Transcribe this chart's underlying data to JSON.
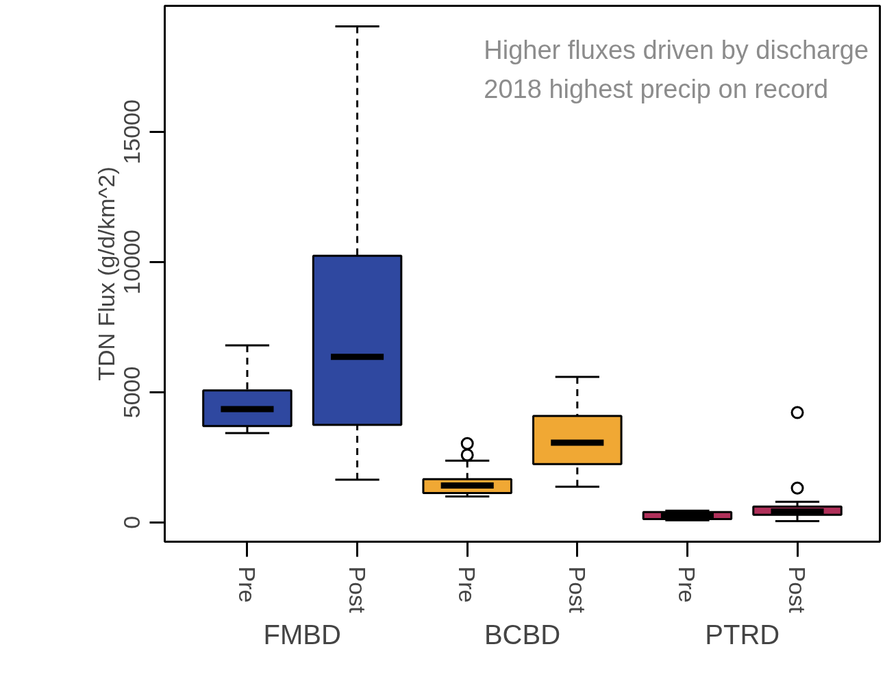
{
  "chart_data": {
    "type": "box",
    "ylabel": "TDN Flux (g/d/km^2)",
    "categories": [
      "Pre",
      "Post",
      "Pre",
      "Post",
      "Pre",
      "Post"
    ],
    "colors": [
      "#2f48a0",
      "#2f48a0",
      "#f0a834",
      "#f0a834",
      "#b0305a",
      "#b0305a"
    ],
    "boxes": [
      {
        "low": 3430,
        "q1": 3700,
        "median": 4350,
        "q3": 5070,
        "high": 6800
      },
      {
        "low": 1640,
        "q1": 3750,
        "median": 6360,
        "q3": 10240,
        "high": 19050
      },
      {
        "low": 1000,
        "q1": 1130,
        "median": 1420,
        "q3": 1660,
        "high": 2370,
        "outliers": [
          2590,
          3030
        ]
      },
      {
        "low": 1370,
        "q1": 2240,
        "median": 3060,
        "q3": 4090,
        "high": 5590
      },
      {
        "low": 80,
        "q1": 130,
        "median": 260,
        "q3": 400,
        "high": 450
      },
      {
        "low": 50,
        "q1": 290,
        "median": 420,
        "q3": 610,
        "high": 790,
        "outliers": [
          1320,
          4220
        ]
      }
    ],
    "ylim": [
      -740,
      19840
    ],
    "yticks": [
      0,
      5000,
      10000,
      15000
    ],
    "annotations": [
      "Higher fluxes driven by discharge",
      "2018 highest precip on record",
      "FMBD",
      "BCBD",
      "PTRD"
    ]
  }
}
